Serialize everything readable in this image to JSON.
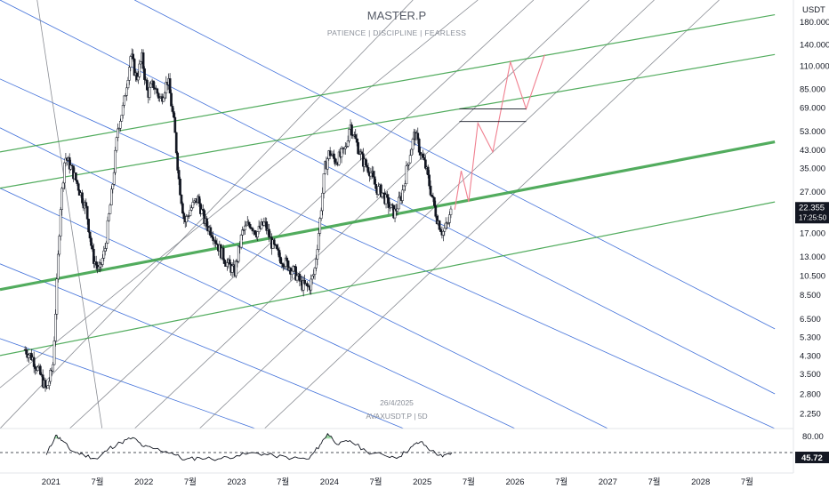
{
  "header": {
    "title": "MASTER.P",
    "subtitle": "PATIENCE  |  DISCIPLINE  |  FEARLESS",
    "currency": "USDT"
  },
  "info": {
    "date": "26/4/2025",
    "symbol": "AVAXUSDT.P  |  5D"
  },
  "price_badge": {
    "value": "22.355",
    "countdown": "17:25:50",
    "color": "#131722"
  },
  "rsi_badge": {
    "value": "45.72",
    "level": "80.00"
  },
  "colors": {
    "candle": "#131722",
    "blue_lines": "#2f63d6",
    "gray_lines": "#6b6f78",
    "green_lines": "#3fa34d",
    "projection": "#f07f8f",
    "rsi_line": "#131722",
    "rsi_overbought_fill": "#7fcf8a"
  },
  "chart_data": {
    "type": "candlestick",
    "scale": "log",
    "ylim": [
      1.9,
      230
    ],
    "y_ticks": [
      "180.000",
      "140.000",
      "110.000",
      "85.000",
      "69.000",
      "53.000",
      "43.000",
      "35.000",
      "27.000",
      "17.000",
      "13.000",
      "10.500",
      "8.500",
      "6.500",
      "5.300",
      "4.300",
      "3.500",
      "2.800",
      "2.250"
    ],
    "y_tick_values": [
      180,
      140,
      110,
      85,
      69,
      53,
      43,
      35,
      27,
      17,
      13,
      10.5,
      8.5,
      6.5,
      5.3,
      4.3,
      3.5,
      2.8,
      2.25
    ],
    "x_ticks": [
      "2021",
      "7월",
      "2022",
      "7월",
      "2023",
      "7월",
      "2024",
      "7월",
      "2025",
      "7월",
      "2026",
      "7월",
      "2027",
      "7월",
      "2028",
      "7월"
    ],
    "x_tick_years": [
      2021.0,
      2021.5,
      2022.0,
      2022.5,
      2023.0,
      2023.5,
      2024.0,
      2024.5,
      2025.0,
      2025.5,
      2026.0,
      2026.5,
      2027.0,
      2027.5,
      2028.0,
      2028.5
    ],
    "x_range_years": [
      2020.45,
      2029.0
    ],
    "last_price": 22.355,
    "price_path": [
      {
        "t": 2020.72,
        "p": 4.6
      },
      {
        "t": 2020.8,
        "p": 4.2
      },
      {
        "t": 2020.88,
        "p": 3.5
      },
      {
        "t": 2020.95,
        "p": 2.9
      },
      {
        "t": 2021.02,
        "p": 3.8
      },
      {
        "t": 2021.06,
        "p": 9
      },
      {
        "t": 2021.1,
        "p": 22
      },
      {
        "t": 2021.15,
        "p": 40
      },
      {
        "t": 2021.22,
        "p": 35
      },
      {
        "t": 2021.3,
        "p": 28
      },
      {
        "t": 2021.38,
        "p": 22
      },
      {
        "t": 2021.45,
        "p": 13
      },
      {
        "t": 2021.52,
        "p": 11
      },
      {
        "t": 2021.58,
        "p": 14
      },
      {
        "t": 2021.66,
        "p": 28
      },
      {
        "t": 2021.72,
        "p": 55
      },
      {
        "t": 2021.78,
        "p": 70
      },
      {
        "t": 2021.86,
        "p": 125
      },
      {
        "t": 2021.92,
        "p": 95
      },
      {
        "t": 2021.98,
        "p": 120
      },
      {
        "t": 2022.04,
        "p": 80
      },
      {
        "t": 2022.1,
        "p": 90
      },
      {
        "t": 2022.18,
        "p": 75
      },
      {
        "t": 2022.26,
        "p": 95
      },
      {
        "t": 2022.33,
        "p": 55
      },
      {
        "t": 2022.38,
        "p": 30
      },
      {
        "t": 2022.44,
        "p": 19
      },
      {
        "t": 2022.5,
        "p": 22
      },
      {
        "t": 2022.58,
        "p": 25
      },
      {
        "t": 2022.66,
        "p": 19
      },
      {
        "t": 2022.74,
        "p": 17
      },
      {
        "t": 2022.82,
        "p": 14
      },
      {
        "t": 2022.9,
        "p": 12
      },
      {
        "t": 2022.98,
        "p": 11
      },
      {
        "t": 2023.06,
        "p": 17
      },
      {
        "t": 2023.14,
        "p": 19
      },
      {
        "t": 2023.22,
        "p": 17
      },
      {
        "t": 2023.3,
        "p": 19
      },
      {
        "t": 2023.38,
        "p": 15
      },
      {
        "t": 2023.46,
        "p": 13
      },
      {
        "t": 2023.54,
        "p": 12
      },
      {
        "t": 2023.62,
        "p": 11
      },
      {
        "t": 2023.7,
        "p": 9.5
      },
      {
        "t": 2023.78,
        "p": 9.2
      },
      {
        "t": 2023.84,
        "p": 11
      },
      {
        "t": 2023.9,
        "p": 20
      },
      {
        "t": 2023.95,
        "p": 35
      },
      {
        "t": 2024.0,
        "p": 42
      },
      {
        "t": 2024.06,
        "p": 38
      },
      {
        "t": 2024.12,
        "p": 40
      },
      {
        "t": 2024.18,
        "p": 44
      },
      {
        "t": 2024.22,
        "p": 58
      },
      {
        "t": 2024.28,
        "p": 48
      },
      {
        "t": 2024.36,
        "p": 38
      },
      {
        "t": 2024.44,
        "p": 34
      },
      {
        "t": 2024.5,
        "p": 28
      },
      {
        "t": 2024.56,
        "p": 27
      },
      {
        "t": 2024.62,
        "p": 24
      },
      {
        "t": 2024.7,
        "p": 21
      },
      {
        "t": 2024.78,
        "p": 26
      },
      {
        "t": 2024.86,
        "p": 40
      },
      {
        "t": 2024.92,
        "p": 52
      },
      {
        "t": 2024.98,
        "p": 42
      },
      {
        "t": 2025.04,
        "p": 35
      },
      {
        "t": 2025.1,
        "p": 26
      },
      {
        "t": 2025.16,
        "p": 20
      },
      {
        "t": 2025.22,
        "p": 17
      },
      {
        "t": 2025.28,
        "p": 19
      },
      {
        "t": 2025.32,
        "p": 22.355
      }
    ],
    "projection": [
      {
        "t": 2025.35,
        "p": 22
      },
      {
        "t": 2025.42,
        "p": 34
      },
      {
        "t": 2025.5,
        "p": 24
      },
      {
        "t": 2025.6,
        "p": 58
      },
      {
        "t": 2025.76,
        "p": 42
      },
      {
        "t": 2025.95,
        "p": 115
      },
      {
        "t": 2026.12,
        "p": 68
      },
      {
        "t": 2026.32,
        "p": 125
      }
    ],
    "target_levels": [
      {
        "t0": 2025.4,
        "t1": 2026.12,
        "p": 68
      },
      {
        "t0": 2025.4,
        "t1": 2026.12,
        "p": 59
      }
    ],
    "channels": {
      "green": [
        {
          "t0": 2020.45,
          "p0": 42,
          "t1": 2028.8,
          "p1": 195
        },
        {
          "t0": 2020.45,
          "p0": 28,
          "t1": 2028.8,
          "p1": 125
        },
        {
          "t0": 2020.45,
          "p0": 9,
          "t1": 2028.8,
          "p1": 47,
          "bold": true
        },
        {
          "t0": 2020.45,
          "p0": 4.3,
          "t1": 2028.8,
          "p1": 24
        }
      ],
      "blue": [
        {
          "t0": 2021.9,
          "p0": 230,
          "t1": 2028.8,
          "p1": 5.8
        },
        {
          "t0": 2020.45,
          "p0": 230,
          "t1": 2028.8,
          "p1": 2.8
        },
        {
          "t0": 2020.45,
          "p0": 95,
          "t1": 2028.8,
          "p1": 1.9
        },
        {
          "t0": 2020.45,
          "p0": 55,
          "t1": 2027.0,
          "p1": 1.9
        },
        {
          "t0": 2020.45,
          "p0": 28,
          "t1": 2026.0,
          "p1": 1.9
        },
        {
          "t0": 2020.45,
          "p0": 12,
          "t1": 2024.8,
          "p1": 1.9
        },
        {
          "t0": 2020.45,
          "p0": 5.2,
          "t1": 2023.2,
          "p1": 1.9
        }
      ],
      "gray": [
        {
          "t0": 2020.85,
          "p0": 230,
          "t1": 2021.55,
          "p1": 1.9
        },
        {
          "t0": 2020.45,
          "p0": 1.9,
          "t1": 2024.9,
          "p1": 230
        },
        {
          "t0": 2020.45,
          "p0": 3.0,
          "t1": 2025.6,
          "p1": 230
        },
        {
          "t0": 2021.2,
          "p0": 1.9,
          "t1": 2026.2,
          "p1": 230
        },
        {
          "t0": 2021.9,
          "p0": 1.9,
          "t1": 2026.8,
          "p1": 230
        },
        {
          "t0": 2022.6,
          "p0": 1.9,
          "t1": 2027.5,
          "p1": 230
        },
        {
          "t0": 2023.3,
          "p0": 1.9,
          "t1": 2028.2,
          "p1": 230
        }
      ]
    },
    "rsi": {
      "ylim": [
        0,
        100
      ],
      "overbought": 80,
      "dashed_level": 45.72,
      "values": [
        {
          "t": 2020.95,
          "v": 40
        },
        {
          "t": 2021.05,
          "v": 88
        },
        {
          "t": 2021.12,
          "v": 75
        },
        {
          "t": 2021.22,
          "v": 50
        },
        {
          "t": 2021.35,
          "v": 40
        },
        {
          "t": 2021.5,
          "v": 30
        },
        {
          "t": 2021.62,
          "v": 55
        },
        {
          "t": 2021.75,
          "v": 70
        },
        {
          "t": 2021.88,
          "v": 82
        },
        {
          "t": 2022.0,
          "v": 60
        },
        {
          "t": 2022.12,
          "v": 55
        },
        {
          "t": 2022.3,
          "v": 45
        },
        {
          "t": 2022.44,
          "v": 28
        },
        {
          "t": 2022.6,
          "v": 33
        },
        {
          "t": 2022.8,
          "v": 30
        },
        {
          "t": 2023.0,
          "v": 38
        },
        {
          "t": 2023.2,
          "v": 45
        },
        {
          "t": 2023.4,
          "v": 38
        },
        {
          "t": 2023.6,
          "v": 32
        },
        {
          "t": 2023.78,
          "v": 30
        },
        {
          "t": 2023.9,
          "v": 65
        },
        {
          "t": 2023.98,
          "v": 92
        },
        {
          "t": 2024.1,
          "v": 65
        },
        {
          "t": 2024.22,
          "v": 75
        },
        {
          "t": 2024.4,
          "v": 48
        },
        {
          "t": 2024.6,
          "v": 38
        },
        {
          "t": 2024.75,
          "v": 35
        },
        {
          "t": 2024.9,
          "v": 62
        },
        {
          "t": 2024.98,
          "v": 72
        },
        {
          "t": 2025.1,
          "v": 50
        },
        {
          "t": 2025.22,
          "v": 35
        },
        {
          "t": 2025.32,
          "v": 45.72
        }
      ]
    }
  }
}
